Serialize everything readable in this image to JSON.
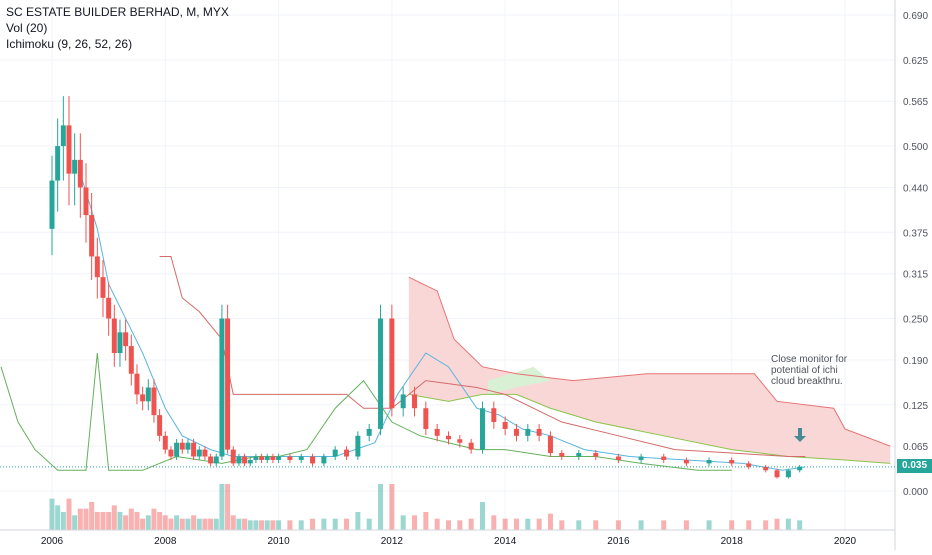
{
  "legend": {
    "title": "SC ESTATE BUILDER BERHAD, M, MYX",
    "volume": "Vol (20)",
    "ichimoku": "Ichimoku (9, 26, 52, 26)"
  },
  "annotation": {
    "text": "Close monitor for\npotential of ichi\ncloud breakthru.",
    "arrow_icon": "arrow-down-icon"
  },
  "last_price_label": "0.035",
  "colors": {
    "up": "#26a69a",
    "down": "#ef5350",
    "tenkan": "#5ab4e0",
    "kijun": "#d46a6a",
    "chikou": "#64b05a",
    "cloud_fill_bear": "#f9d3d3",
    "cloud_fill_bull": "#d8f0d4",
    "span_a": "#8bc34a",
    "span_b": "#e57373",
    "arrow": "#4a8a94"
  },
  "chart_data": {
    "type": "candlestick",
    "title": "SC ESTATE BUILDER BERHAD, M, MYX",
    "ylim": [
      0.0,
      0.69
    ],
    "x_ticks": [
      "2006",
      "2008",
      "2010",
      "2012",
      "2014",
      "2016",
      "2018",
      "2020"
    ],
    "y_ticks": [
      "0.690",
      "0.625",
      "0.565",
      "0.500",
      "0.440",
      "0.375",
      "0.315",
      "0.250",
      "0.190",
      "0.125",
      "0.065",
      "0.000"
    ],
    "last_price": 0.035,
    "grid": true,
    "close_series": [
      [
        2006.0,
        0.38,
        0.45
      ],
      [
        2006.1,
        0.45,
        0.5
      ],
      [
        2006.2,
        0.5,
        0.53
      ],
      [
        2006.3,
        0.53,
        0.46
      ],
      [
        2006.4,
        0.46,
        0.48
      ],
      [
        2006.5,
        0.48,
        0.44
      ],
      [
        2006.6,
        0.44,
        0.4
      ],
      [
        2006.7,
        0.4,
        0.34
      ],
      [
        2006.8,
        0.34,
        0.31
      ],
      [
        2006.9,
        0.31,
        0.28
      ],
      [
        2007.0,
        0.28,
        0.25
      ],
      [
        2007.1,
        0.25,
        0.2
      ],
      [
        2007.2,
        0.2,
        0.23
      ],
      [
        2007.3,
        0.23,
        0.21
      ],
      [
        2007.4,
        0.21,
        0.17
      ],
      [
        2007.5,
        0.17,
        0.14
      ],
      [
        2007.6,
        0.14,
        0.13
      ],
      [
        2007.7,
        0.13,
        0.15
      ],
      [
        2007.8,
        0.15,
        0.11
      ],
      [
        2007.9,
        0.11,
        0.08
      ],
      [
        2008.0,
        0.08,
        0.06
      ],
      [
        2008.1,
        0.06,
        0.05
      ],
      [
        2008.2,
        0.05,
        0.07
      ],
      [
        2008.3,
        0.07,
        0.06
      ],
      [
        2008.4,
        0.06,
        0.07
      ],
      [
        2008.5,
        0.07,
        0.05
      ],
      [
        2008.6,
        0.05,
        0.06
      ],
      [
        2008.7,
        0.06,
        0.05
      ],
      [
        2008.8,
        0.05,
        0.04
      ],
      [
        2008.9,
        0.04,
        0.05
      ],
      [
        2009.0,
        0.05,
        0.25
      ],
      [
        2009.1,
        0.25,
        0.06
      ],
      [
        2009.2,
        0.06,
        0.04
      ],
      [
        2009.3,
        0.04,
        0.05
      ],
      [
        2009.4,
        0.05,
        0.04
      ],
      [
        2009.5,
        0.04,
        0.045
      ],
      [
        2009.6,
        0.045,
        0.05
      ],
      [
        2009.7,
        0.05,
        0.045
      ],
      [
        2009.8,
        0.045,
        0.05
      ],
      [
        2009.9,
        0.05,
        0.045
      ],
      [
        2010.0,
        0.045,
        0.05
      ],
      [
        2010.2,
        0.05,
        0.045
      ],
      [
        2010.4,
        0.045,
        0.05
      ],
      [
        2010.6,
        0.05,
        0.04
      ],
      [
        2010.8,
        0.04,
        0.05
      ],
      [
        2011.0,
        0.05,
        0.06
      ],
      [
        2011.2,
        0.06,
        0.05
      ],
      [
        2011.4,
        0.05,
        0.08
      ],
      [
        2011.6,
        0.08,
        0.09
      ],
      [
        2011.8,
        0.09,
        0.25
      ],
      [
        2012.0,
        0.25,
        0.12
      ],
      [
        2012.2,
        0.12,
        0.14
      ],
      [
        2012.4,
        0.14,
        0.12
      ],
      [
        2012.6,
        0.12,
        0.09
      ],
      [
        2012.8,
        0.09,
        0.08
      ],
      [
        2013.0,
        0.08,
        0.075
      ],
      [
        2013.2,
        0.075,
        0.07
      ],
      [
        2013.4,
        0.07,
        0.06
      ],
      [
        2013.6,
        0.06,
        0.12
      ],
      [
        2013.8,
        0.12,
        0.1
      ],
      [
        2014.0,
        0.1,
        0.09
      ],
      [
        2014.2,
        0.09,
        0.08
      ],
      [
        2014.4,
        0.08,
        0.09
      ],
      [
        2014.6,
        0.09,
        0.08
      ],
      [
        2014.8,
        0.08,
        0.055
      ],
      [
        2015.0,
        0.055,
        0.05
      ],
      [
        2015.3,
        0.05,
        0.055
      ],
      [
        2015.6,
        0.055,
        0.05
      ],
      [
        2016.0,
        0.05,
        0.045
      ],
      [
        2016.4,
        0.045,
        0.05
      ],
      [
        2016.8,
        0.05,
        0.045
      ],
      [
        2017.2,
        0.045,
        0.04
      ],
      [
        2017.6,
        0.04,
        0.045
      ],
      [
        2018.0,
        0.045,
        0.04
      ],
      [
        2018.3,
        0.04,
        0.035
      ],
      [
        2018.6,
        0.035,
        0.03
      ],
      [
        2018.8,
        0.03,
        0.02
      ],
      [
        2019.0,
        0.02,
        0.03
      ],
      [
        2019.2,
        0.03,
        0.035
      ]
    ]
  }
}
